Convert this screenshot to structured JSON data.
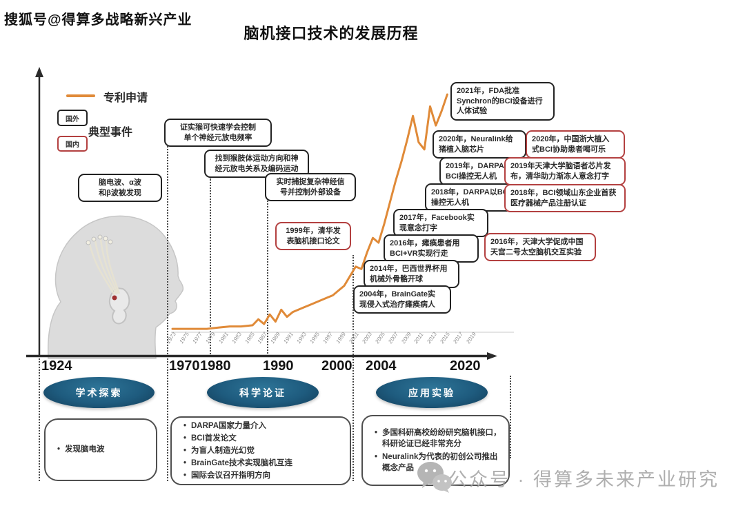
{
  "watermarks": {
    "top": "搜狐号@得算多战略新兴产业",
    "bottom": "公众号 · 得算多未来产业研究"
  },
  "title": "脑机接口技术的发展历程",
  "legend": {
    "patent": "专利申请",
    "typical_events": "典型事件",
    "foreign": "国外",
    "domestic": "国内"
  },
  "colors": {
    "patent_line": "#E08A38",
    "foreign_border": "#222222",
    "domestic_border": "#B34040",
    "phase_ellipse": "#1E5B7E"
  },
  "axis": {
    "major_years": [
      "1924",
      "1970",
      "1980",
      "1990",
      "2000",
      "2004",
      "2020"
    ],
    "minor_years": [
      1973,
      1975,
      1977,
      1979,
      1981,
      1983,
      1985,
      1987,
      1989,
      1991,
      1993,
      1995,
      1997,
      1999,
      2001,
      2003,
      2005,
      2007,
      2009,
      2011,
      2013,
      2015,
      2017,
      2019
    ]
  },
  "events": {
    "foreign": [
      {
        "text": "脑电波、α波\n和β波被发现"
      },
      {
        "text": "证实猴可快速学会控制\n单个神经元放电频率"
      },
      {
        "text": "找到猴肢体运动方向和神\n经元放电关系及编码运动"
      },
      {
        "text": "实时捕捉复杂神经信\n号并控制外部设备"
      },
      {
        "text": "2021年，FDA批准\nSynchron的BCI设备进行\n人体试验"
      },
      {
        "text": "2020年，Neuralink给\n猪植入脑芯片"
      },
      {
        "text": "2019年，DARPA以\nBCI操控无人机"
      },
      {
        "text": "2018年，DARPA以BCI\n操控无人机"
      },
      {
        "text": "2017年，Facebook实\n现意念打字"
      },
      {
        "text": "2016年，瘫痪患者用\nBCI+VR实现行走"
      },
      {
        "text": "2014年，巴西世界杯用\n机械外骨骼开球"
      },
      {
        "text": "2004年，BrainGate实\n现侵入式治疗瘫痪病人"
      }
    ],
    "domestic": [
      {
        "text": "1999年，清华发\n表脑机接口论文"
      },
      {
        "text": "2020年，中国浙大植入\n式BCI协助患者喝可乐"
      },
      {
        "text": "2019年天津大学脑语者芯片发\n布，清华助力渐冻人意念打字"
      },
      {
        "text": "2018年，BCI领域山东企业首获\n医疗器械产品注册认证"
      },
      {
        "text": "2016年，天津大学促成中国\n天宫二号太空脑机交互实验"
      }
    ]
  },
  "phases": [
    {
      "label": "学术探索",
      "bullets": [
        "发现脑电波"
      ]
    },
    {
      "label": "科学论证",
      "bullets": [
        "DARPA国家力量介入",
        "BCI首发论文",
        "为盲人制造光幻觉",
        "BrainGate技术实现脑机互连",
        "国际会议召开指明方向"
      ]
    },
    {
      "label": "应用实验",
      "bullets": [
        "多国科研高校纷纷研究脑机接口，科研论证已经非常充分",
        "Neuralink为代表的初创公司推出概念产品"
      ]
    }
  ],
  "chart_data": {
    "type": "line",
    "title": "脑机接口技术的发展历程",
    "legend_position": "top-left",
    "x_major_ticks": [
      "1924",
      "1970",
      "1980",
      "1990",
      "2000",
      "2004",
      "2020"
    ],
    "x_minor_tick_years": [
      1973,
      1975,
      1977,
      1979,
      1981,
      1983,
      1985,
      1987,
      1989,
      1991,
      1993,
      1995,
      1997,
      1999,
      2001,
      2003,
      2005,
      2007,
      2009,
      2011,
      2013,
      2015,
      2017,
      2019
    ],
    "ylabel": "",
    "y_units": "relative patent-application volume (no y-axis scale labeled in image; values estimated 0-100)",
    "series": [
      {
        "name": "专利申请",
        "color": "#E08A38",
        "points": [
          [
            1973,
            2
          ],
          [
            1975,
            2
          ],
          [
            1977,
            2
          ],
          [
            1979,
            2
          ],
          [
            1981,
            2.5
          ],
          [
            1983,
            3
          ],
          [
            1985,
            3
          ],
          [
            1987,
            3.5
          ],
          [
            1988,
            6
          ],
          [
            1989,
            4
          ],
          [
            1990,
            8
          ],
          [
            1991,
            5
          ],
          [
            1992,
            10
          ],
          [
            1993,
            7
          ],
          [
            1994,
            9
          ],
          [
            1995,
            10
          ],
          [
            1996,
            11
          ],
          [
            1997,
            12
          ],
          [
            1998,
            13
          ],
          [
            1999,
            14
          ],
          [
            2000,
            15
          ],
          [
            2001,
            16
          ],
          [
            2002,
            18
          ],
          [
            2003,
            20
          ],
          [
            2004,
            24
          ],
          [
            2005,
            28
          ],
          [
            2006,
            27
          ],
          [
            2007,
            34
          ],
          [
            2008,
            40
          ],
          [
            2009,
            38
          ],
          [
            2010,
            46
          ],
          [
            2011,
            55
          ],
          [
            2012,
            64
          ],
          [
            2013,
            72
          ],
          [
            2014,
            81
          ],
          [
            2015,
            91
          ],
          [
            2016,
            80
          ],
          [
            2017,
            77
          ],
          [
            2018,
            95
          ],
          [
            2019,
            87
          ],
          [
            2020,
            93
          ],
          [
            2021,
            100
          ]
        ]
      }
    ]
  }
}
